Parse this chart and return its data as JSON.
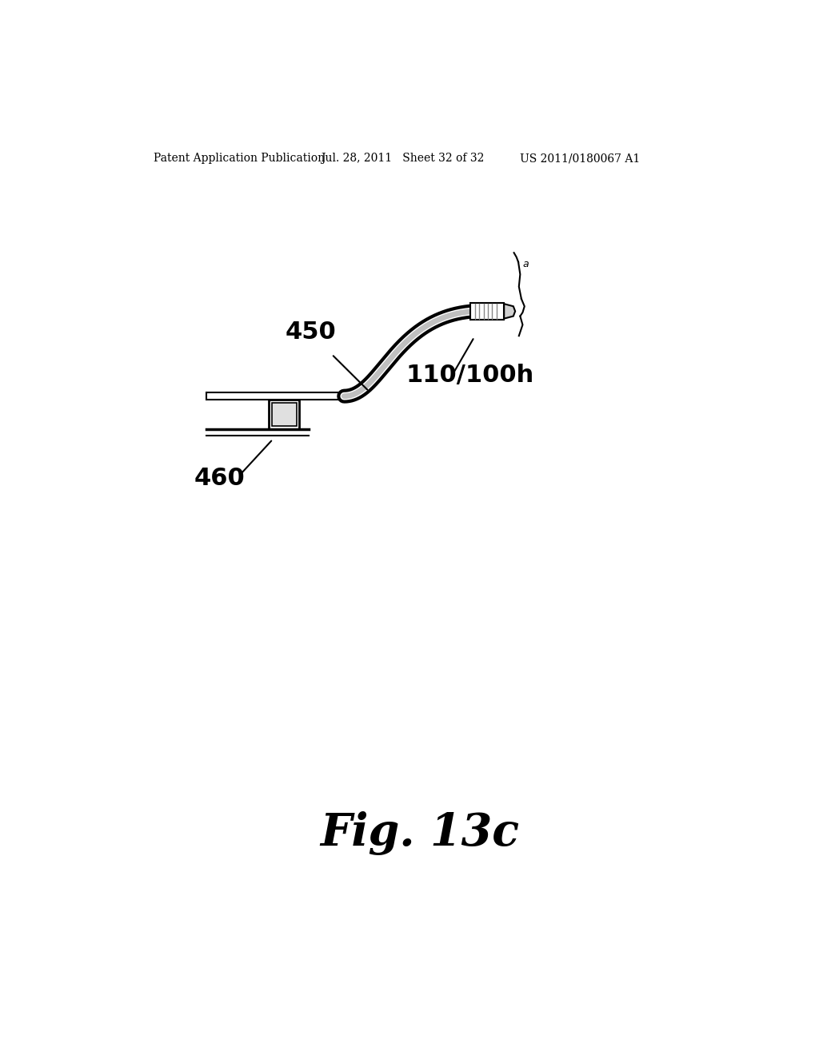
{
  "background_color": "#ffffff",
  "header_left": "Patent Application Publication",
  "header_center": "Jul. 28, 2011   Sheet 32 of 32",
  "header_right": "US 2011/0180067 A1",
  "header_fontsize": 10,
  "figure_label": "Fig. 13c",
  "figure_label_fontsize": 40,
  "label_450": "450",
  "label_460": "460",
  "label_110_100h": "110/100h",
  "label_fontsize_large": 22
}
